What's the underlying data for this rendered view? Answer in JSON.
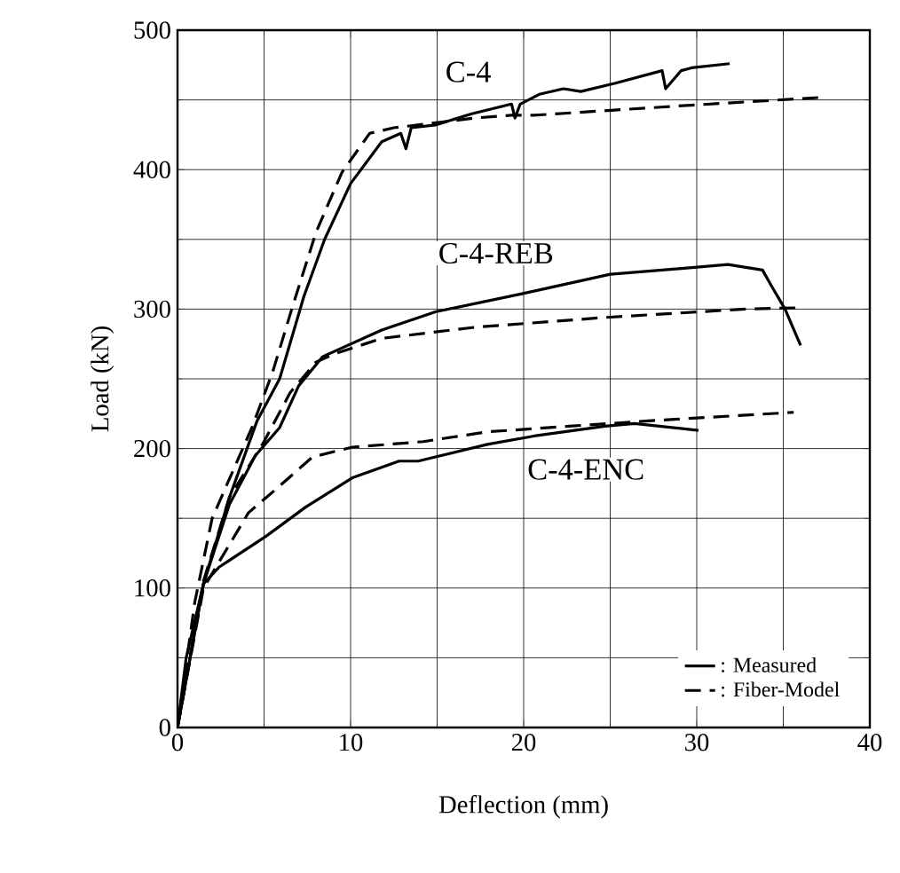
{
  "chart_data": {
    "type": "line",
    "xlabel": "Deflection (mm)",
    "ylabel": "Load (kN)",
    "xlim": [
      0,
      40
    ],
    "ylim": [
      0,
      500
    ],
    "xticks": [
      0,
      10,
      20,
      30,
      40
    ],
    "yticks": [
      0,
      100,
      200,
      300,
      400,
      500
    ],
    "grid": true,
    "legend": "bottom right",
    "marker": "none",
    "annotations": [
      "C-4",
      "C-4-REB",
      "C-4-ENC"
    ],
    "series": [
      {
        "name": ": Measured",
        "color": "#000000",
        "line_style": "solid",
        "x": [
          0,
          0.5,
          1.5,
          3,
          4.6,
          5.9,
          7.3,
          8.5,
          10,
          11.8,
          12.9,
          13.2,
          13.5,
          14.9,
          17,
          19.3,
          19.5,
          19.8,
          20.9,
          22.3,
          23.3,
          25.3,
          28,
          28.2,
          29.1,
          29.7,
          31.9
        ],
        "values": [
          0,
          50,
          103,
          165,
          220,
          250,
          309,
          350,
          390,
          420,
          426,
          415,
          430,
          432,
          440,
          447,
          437,
          447,
          454,
          458,
          456,
          462,
          471,
          458,
          471,
          473,
          476
        ]
      },
      {
        "name": ": Fiber-Model",
        "color": "#000000",
        "line_style": "dashed",
        "x": [
          0,
          1,
          2,
          4.3,
          5.5,
          6.6,
          8,
          9.5,
          11.1,
          12.5,
          17.2,
          19.3,
          20.6,
          29.4,
          37.5
        ],
        "values": [
          0,
          90,
          150,
          215,
          255,
          300,
          355,
          398,
          426,
          430,
          437,
          439,
          439,
          446,
          452
        ]
      },
      {
        "color": "#000000",
        "line_style": "solid",
        "x": [
          0,
          1.5,
          3,
          4.5,
          5.9,
          7,
          8.4,
          11.8,
          14.9,
          19.9,
          25,
          28,
          31.8,
          33.8,
          34.3,
          35.1,
          36
        ],
        "values": [
          0,
          103,
          160,
          195,
          215,
          245,
          266,
          285,
          298,
          311,
          325,
          328,
          332,
          328,
          317,
          300,
          274
        ]
      },
      {
        "color": "#000000",
        "line_style": "dashed",
        "x": [
          0,
          1.5,
          3,
          5,
          6.5,
          8,
          9.1,
          11.8,
          17.2,
          24.7,
          32.8,
          36.1
        ],
        "values": [
          0,
          105,
          165,
          205,
          240,
          262,
          268,
          279,
          287,
          294,
          300,
          301
        ]
      },
      {
        "color": "#000000",
        "line_style": "solid",
        "x": [
          0,
          1.5,
          2.4,
          5.1,
          7.4,
          10.1,
          12.8,
          13.9,
          17.9,
          20.6,
          24.7,
          26.4,
          30.1
        ],
        "values": [
          0,
          103,
          115,
          137,
          158,
          179,
          191,
          191,
          203,
          209,
          216,
          218,
          213
        ]
      },
      {
        "color": "#000000",
        "line_style": "dashed",
        "x": [
          0,
          1.5,
          4.1,
          5.7,
          7.8,
          10.1,
          14.2,
          17.9,
          22.6,
          27.4,
          35.6
        ],
        "values": [
          0,
          100,
          154,
          171,
          194,
          201,
          205,
          212,
          216,
          220,
          226
        ]
      }
    ]
  }
}
